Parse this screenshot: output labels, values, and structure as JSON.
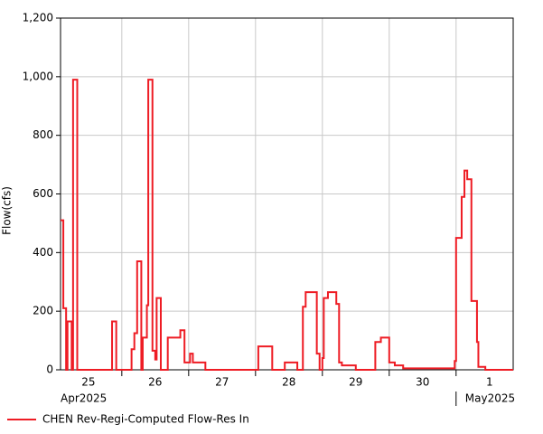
{
  "chart_data": {
    "type": "step",
    "ylabel": "Flow(cfs)",
    "x": [
      "2025-04-25T02:00",
      "2025-04-25T03:00",
      "2025-04-25T04:00",
      "2025-04-25T04:30",
      "2025-04-25T06:00",
      "2025-04-25T06:30",
      "2025-04-25T08:00",
      "2025-04-25T20:30",
      "2025-04-25T22:00",
      "2025-04-26T03:30",
      "2025-04-26T04:30",
      "2025-04-26T05:30",
      "2025-04-26T07:00",
      "2025-04-26T07:30",
      "2025-04-26T09:00",
      "2025-04-26T09:30",
      "2025-04-26T11:00",
      "2025-04-26T12:00",
      "2025-04-26T12:30",
      "2025-04-26T14:00",
      "2025-04-26T16:30",
      "2025-04-26T21:00",
      "2025-04-26T22:30",
      "2025-04-27T00:30",
      "2025-04-27T01:30",
      "2025-04-27T06:00",
      "2025-04-28T01:00",
      "2025-04-28T06:00",
      "2025-04-28T10:30",
      "2025-04-28T15:00",
      "2025-04-28T17:00",
      "2025-04-28T18:00",
      "2025-04-28T22:00",
      "2025-04-28T23:00",
      "2025-04-29T00:00",
      "2025-04-29T00:30",
      "2025-04-29T02:00",
      "2025-04-29T05:00",
      "2025-04-29T06:00",
      "2025-04-29T07:00",
      "2025-04-29T12:00",
      "2025-04-29T19:00",
      "2025-04-29T21:00",
      "2025-04-30T00:00",
      "2025-04-30T02:00",
      "2025-04-30T05:00",
      "2025-04-30T23:30",
      "2025-05-01T00:00",
      "2025-05-01T02:00",
      "2025-05-01T03:00",
      "2025-05-01T04:00",
      "2025-05-01T05:30",
      "2025-05-01T07:30",
      "2025-05-01T08:00",
      "2025-05-01T10:30"
    ],
    "series": [
      {
        "name": "CHEN Rev-Regi-Computed Flow-Res In",
        "color": "#ee1c24",
        "values": [
          510,
          210,
          0,
          165,
          0,
          990,
          0,
          165,
          0,
          70,
          125,
          370,
          0,
          110,
          220,
          990,
          65,
          35,
          245,
          0,
          110,
          135,
          25,
          55,
          25,
          0,
          80,
          0,
          25,
          0,
          215,
          265,
          55,
          0,
          40,
          245,
          265,
          225,
          25,
          15,
          0,
          95,
          110,
          25,
          15,
          5,
          30,
          450,
          590,
          680,
          650,
          235,
          95,
          10,
          0
        ]
      }
    ],
    "xlim": [
      "2025-04-25T02:00",
      "2025-05-01T20:30"
    ],
    "xticks": [
      "2025-04-26T00:00",
      "2025-04-27T00:00",
      "2025-04-28T00:00",
      "2025-04-29T00:00",
      "2025-04-30T00:00",
      "2025-05-01T00:00"
    ],
    "day_labels": [
      {
        "value": "2025-04-25T12:00",
        "label": "25"
      },
      {
        "value": "2025-04-26T12:00",
        "label": "26"
      },
      {
        "value": "2025-04-27T12:00",
        "label": "27"
      },
      {
        "value": "2025-04-28T12:00",
        "label": "28"
      },
      {
        "value": "2025-04-29T12:00",
        "label": "29"
      },
      {
        "value": "2025-04-30T12:00",
        "label": "30"
      },
      {
        "value": "2025-05-01T12:00",
        "label": "1"
      }
    ],
    "month_labels": [
      {
        "value": "2025-04-25T02:00",
        "label": "Apr2025"
      },
      {
        "value": "2025-05-01T00:00",
        "label": "May2025"
      }
    ],
    "ylim": [
      0,
      1200
    ],
    "yticks": [
      0,
      200,
      400,
      600,
      800,
      {
        "value": 1000,
        "label": "1,000"
      },
      {
        "value": 1200,
        "label": "1,200"
      }
    ],
    "grid": true,
    "legend": "bottom-left"
  }
}
